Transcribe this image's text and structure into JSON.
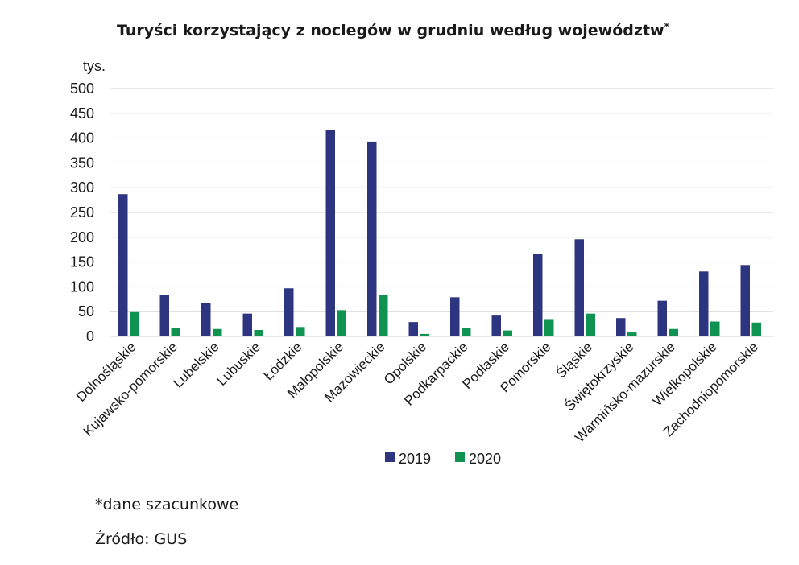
{
  "chart_data": {
    "type": "bar",
    "title": "Turyści korzystający z noclegów w grudniu według województw",
    "title_marker": "*",
    "ylabel": "tys.",
    "ylim": [
      0,
      500
    ],
    "yticks": [
      0,
      50,
      100,
      150,
      200,
      250,
      300,
      350,
      400,
      450,
      500
    ],
    "grid": true,
    "legend_position": "bottom-center",
    "categories": [
      "Dolnośląskie",
      "Kujawsko-pomorskie",
      "Lubelskie",
      "Lubuskie",
      "Łódzkie",
      "Małopolskie",
      "Mazowieckie",
      "Opolskie",
      "Podkarpackie",
      "Podlaskie",
      "Pomorskie",
      "Śląskie",
      "Świętokrzyskie",
      "Warmińsko-mazurskie",
      "Wielkopolskie",
      "Zachodniopomorskie"
    ],
    "series": [
      {
        "name": "2019",
        "color": "#2e3580",
        "values": [
          287,
          83,
          68,
          46,
          97,
          417,
          393,
          29,
          79,
          42,
          167,
          196,
          37,
          72,
          131,
          144
        ]
      },
      {
        "name": "2020",
        "color": "#0f9350",
        "values": [
          49,
          17,
          15,
          13,
          19,
          53,
          83,
          5,
          17,
          12,
          35,
          46,
          8,
          15,
          30,
          28
        ]
      }
    ]
  },
  "notes": {
    "estimate": "*dane szacunkowe",
    "source": "Źródło: GUS"
  }
}
